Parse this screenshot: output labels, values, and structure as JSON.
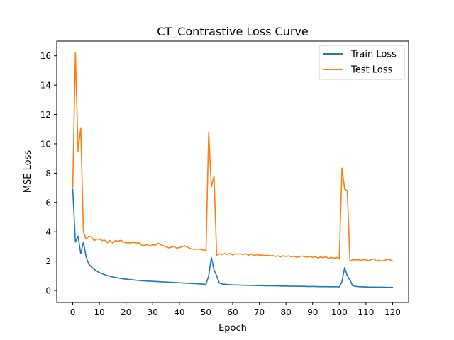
{
  "chart_data": {
    "type": "line",
    "title": "CT_Contrastive Loss Curve",
    "xlabel": "Epoch",
    "ylabel": "MSE Loss",
    "xlim": [
      -6,
      126
    ],
    "ylim": [
      -0.82,
      17.0
    ],
    "xticks": [
      0,
      10,
      20,
      30,
      40,
      50,
      60,
      70,
      80,
      90,
      100,
      110,
      120
    ],
    "yticks": [
      0,
      2,
      4,
      6,
      8,
      10,
      12,
      14,
      16
    ],
    "grid": false,
    "legend_position": "top-right",
    "series": [
      {
        "name": "Train Loss",
        "color": "#1f77b4",
        "values": [
          6.9,
          3.3,
          3.7,
          2.5,
          3.3,
          2.3,
          1.8,
          1.6,
          1.45,
          1.32,
          1.22,
          1.14,
          1.07,
          1.01,
          0.96,
          0.92,
          0.88,
          0.85,
          0.82,
          0.79,
          0.77,
          0.75,
          0.73,
          0.71,
          0.69,
          0.68,
          0.66,
          0.65,
          0.64,
          0.63,
          0.62,
          0.61,
          0.6,
          0.59,
          0.58,
          0.57,
          0.56,
          0.55,
          0.54,
          0.53,
          0.52,
          0.51,
          0.5,
          0.49,
          0.48,
          0.47,
          0.46,
          0.45,
          0.44,
          0.43,
          0.42,
          1.0,
          2.25,
          1.4,
          1.0,
          0.5,
          0.44,
          0.42,
          0.4,
          0.39,
          0.38,
          0.37,
          0.37,
          0.36,
          0.36,
          0.35,
          0.35,
          0.34,
          0.34,
          0.33,
          0.33,
          0.33,
          0.32,
          0.32,
          0.32,
          0.31,
          0.31,
          0.31,
          0.3,
          0.3,
          0.3,
          0.29,
          0.29,
          0.29,
          0.29,
          0.28,
          0.28,
          0.28,
          0.27,
          0.27,
          0.27,
          0.27,
          0.26,
          0.26,
          0.26,
          0.26,
          0.25,
          0.25,
          0.25,
          0.25,
          0.24,
          0.6,
          1.55,
          1.0,
          0.7,
          0.32,
          0.28,
          0.26,
          0.25,
          0.24,
          0.24,
          0.23,
          0.23,
          0.23,
          0.22,
          0.22,
          0.22,
          0.22,
          0.21,
          0.21,
          0.21
        ]
      },
      {
        "name": "Test Loss",
        "color": "#ff7f0e",
        "values": [
          7.0,
          16.2,
          9.5,
          11.1,
          4.0,
          3.5,
          3.7,
          3.65,
          3.4,
          3.5,
          3.5,
          3.4,
          3.42,
          3.25,
          3.4,
          3.22,
          3.4,
          3.35,
          3.42,
          3.3,
          3.25,
          3.24,
          3.25,
          3.28,
          3.22,
          3.25,
          3.05,
          3.08,
          3.12,
          3.02,
          3.12,
          3.08,
          3.22,
          3.12,
          3.05,
          2.98,
          2.9,
          2.95,
          3.0,
          2.88,
          2.92,
          2.98,
          3.05,
          2.95,
          2.86,
          2.82,
          2.8,
          2.82,
          2.8,
          2.75,
          2.72,
          10.8,
          7.05,
          7.8,
          2.4,
          2.5,
          2.45,
          2.52,
          2.46,
          2.52,
          2.42,
          2.5,
          2.48,
          2.5,
          2.45,
          2.5,
          2.4,
          2.48,
          2.38,
          2.44,
          2.4,
          2.42,
          2.38,
          2.4,
          2.36,
          2.38,
          2.32,
          2.36,
          2.3,
          2.36,
          2.32,
          2.36,
          2.3,
          2.34,
          2.26,
          2.3,
          2.35,
          2.3,
          2.28,
          2.32,
          2.26,
          2.3,
          2.22,
          2.28,
          2.24,
          2.3,
          2.18,
          2.26,
          2.2,
          2.25,
          2.18,
          8.35,
          6.9,
          6.8,
          2.0,
          2.1,
          2.08,
          2.1,
          2.05,
          2.1,
          2.08,
          2.04,
          2.1,
          2.15,
          2.0,
          2.06,
          2.0,
          2.05,
          2.12,
          2.1,
          2.0
        ]
      }
    ]
  }
}
